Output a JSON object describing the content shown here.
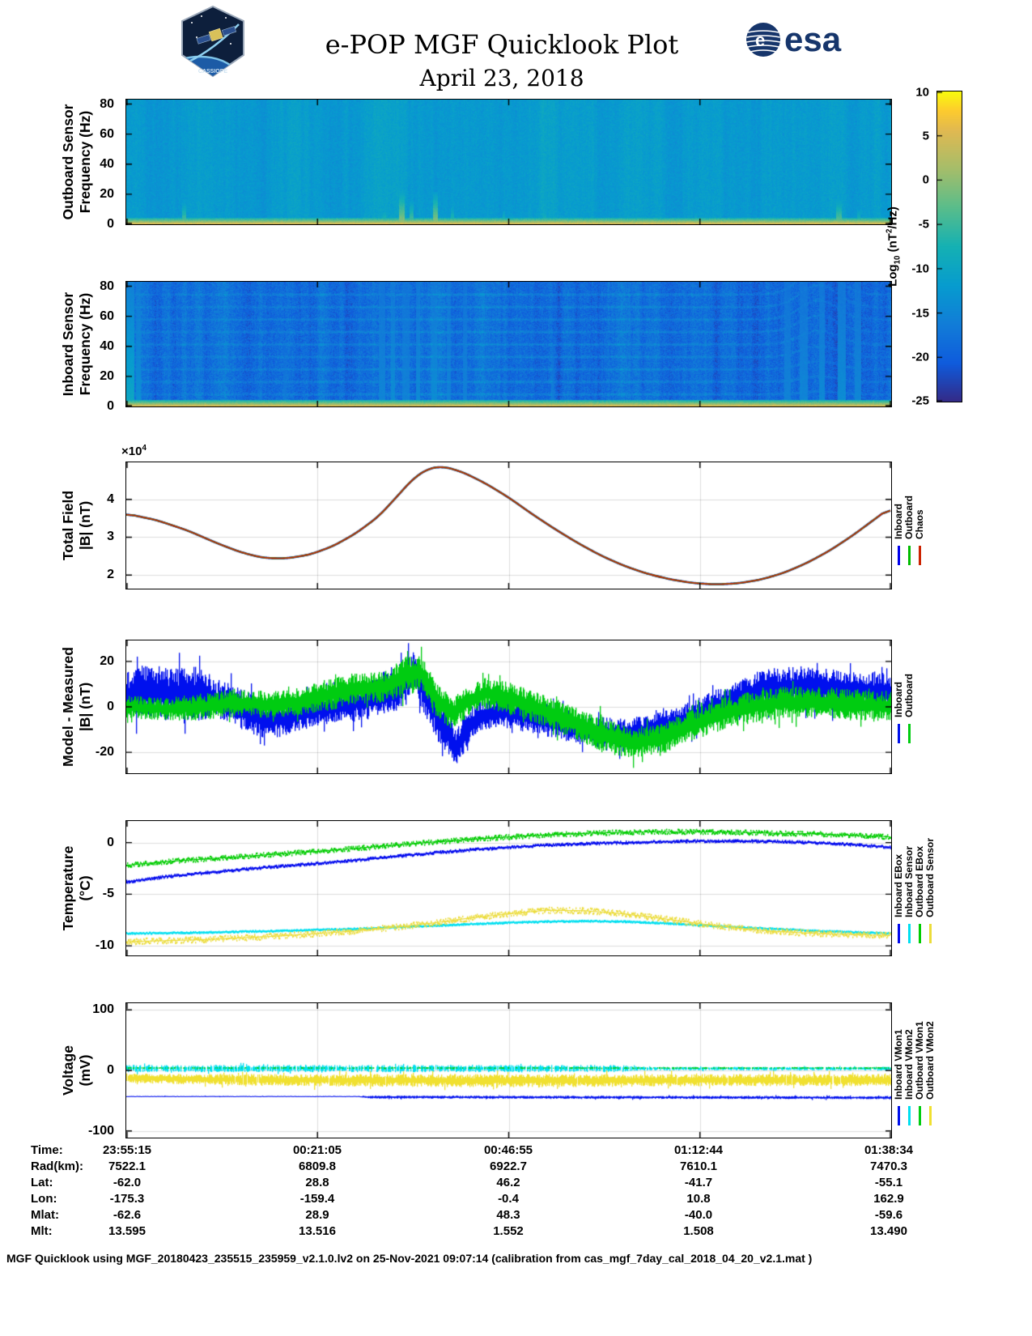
{
  "header": {
    "title": "e-POP MGF Quicklook Plot",
    "subtitle": "April 23, 2018",
    "esa_text": "esa",
    "esa_mark": "e",
    "patch_text": "CASSIOPE"
  },
  "colorbar": {
    "label_prefix": "Log",
    "label_sub": "10",
    "label_mid": " (nT",
    "label_sup": "2",
    "label_suffix": "/Hz)",
    "clim": [
      -25,
      10
    ],
    "ticks": [
      10,
      5,
      0,
      -5,
      -10,
      -15,
      -20,
      -25
    ],
    "colormap": "parula"
  },
  "chart_data": [
    {
      "id": "outboard-spectrogram",
      "type": "heatmap",
      "ylabel_line1": "Outboard Sensor",
      "ylabel_line2": "Frequency (Hz)",
      "ylim": [
        0,
        83
      ],
      "yticks": [
        0,
        20,
        40,
        60,
        80
      ],
      "clim": [
        -25,
        10
      ],
      "colormap": "parula",
      "base_level": -12,
      "pixel_noise": 1.4,
      "column_noise": 0.8,
      "bottom_band": {
        "level": 7,
        "falloff": 3.4,
        "fmax": 4.5
      },
      "harmonics": null,
      "streaks": [
        {
          "x": 0.072,
          "w": 0.006,
          "fmax": 15,
          "boost": 10
        },
        {
          "x": 0.335,
          "w": 0.004,
          "fmax": 10,
          "boost": 8
        },
        {
          "x": 0.356,
          "w": 0.007,
          "fmax": 24,
          "boost": 13
        },
        {
          "x": 0.37,
          "w": 0.005,
          "fmax": 16,
          "boost": 10
        },
        {
          "x": 0.401,
          "w": 0.006,
          "fmax": 22,
          "boost": 13
        },
        {
          "x": 0.424,
          "w": 0.004,
          "fmax": 12,
          "boost": 8
        },
        {
          "x": 0.492,
          "w": 0.003,
          "fmax": 9,
          "boost": 7
        },
        {
          "x": 0.545,
          "w": 0.004,
          "fmax": 10,
          "boost": 7
        },
        {
          "x": 0.742,
          "w": 0.003,
          "fmax": 8,
          "boost": 6
        },
        {
          "x": 0.928,
          "w": 0.007,
          "fmax": 17,
          "boost": 11
        },
        {
          "x": 0.955,
          "w": 0.004,
          "fmax": 10,
          "boost": 7
        }
      ]
    },
    {
      "id": "inboard-spectrogram",
      "type": "heatmap",
      "ylabel_line1": "Inboard Sensor",
      "ylabel_line2": "Frequency (Hz)",
      "ylim": [
        0,
        83
      ],
      "yticks": [
        0,
        20,
        40,
        60,
        80
      ],
      "clim": [
        -25,
        10
      ],
      "colormap": "parula",
      "base_level": -18.5,
      "pixel_noise": 2.4,
      "column_noise": 1.4,
      "bottom_band": {
        "level": 7,
        "falloff": 3.4,
        "fmax": 4.5
      },
      "harmonics": {
        "spacing": 8.3,
        "count": 9,
        "strength": 3.4
      },
      "streaks": [
        {
          "x": 0.0,
          "w": 0.01,
          "fmax": 83,
          "boost": 9
        },
        {
          "x": 0.012,
          "w": 0.006,
          "fmax": 83,
          "boost": 5
        },
        {
          "x": 0.205,
          "w": 0.004,
          "fmax": 40,
          "boost": 2
        },
        {
          "x": 0.33,
          "w": 0.008,
          "fmax": 83,
          "boost": 3.5
        },
        {
          "x": 0.345,
          "w": 0.006,
          "fmax": 83,
          "boost": 4.5
        },
        {
          "x": 0.36,
          "w": 0.01,
          "fmax": 83,
          "boost": 3
        },
        {
          "x": 0.378,
          "w": 0.006,
          "fmax": 83,
          "boost": 4
        },
        {
          "x": 0.398,
          "w": 0.008,
          "fmax": 83,
          "boost": 4.5
        },
        {
          "x": 0.418,
          "w": 0.006,
          "fmax": 83,
          "boost": 3
        },
        {
          "x": 0.44,
          "w": 0.005,
          "fmax": 83,
          "boost": 3
        },
        {
          "x": 0.555,
          "w": 0.004,
          "fmax": 40,
          "boost": 2.5
        },
        {
          "x": 0.86,
          "w": 0.008,
          "fmax": 83,
          "boost": 3
        },
        {
          "x": 0.88,
          "w": 0.01,
          "fmax": 83,
          "boost": 3.5
        },
        {
          "x": 0.905,
          "w": 0.008,
          "fmax": 83,
          "boost": 4
        },
        {
          "x": 0.93,
          "w": 0.01,
          "fmax": 83,
          "boost": 4.5
        },
        {
          "x": 0.952,
          "w": 0.008,
          "fmax": 83,
          "boost": 3.5
        }
      ]
    },
    {
      "id": "total-field",
      "type": "line",
      "ylabel_line1": "Total Field",
      "ylabel_line2": "|B| (nT)",
      "exp_prefix": "×10",
      "exp_power": "4",
      "unit_scale": "1e4 nT",
      "ylim": [
        1.64,
        4.98
      ],
      "yticks": [
        2,
        3,
        4
      ],
      "grid": true,
      "x": [
        0,
        0.04,
        0.08,
        0.12,
        0.15,
        0.18,
        0.21,
        0.24,
        0.27,
        0.3,
        0.33,
        0.355,
        0.375,
        0.395,
        0.415,
        0.44,
        0.47,
        0.5,
        0.53,
        0.56,
        0.59,
        0.62,
        0.65,
        0.68,
        0.71,
        0.74,
        0.77,
        0.8,
        0.83,
        0.86,
        0.89,
        0.92,
        0.95,
        0.98,
        1.0
      ],
      "y": [
        3.62,
        3.45,
        3.18,
        2.83,
        2.6,
        2.45,
        2.44,
        2.54,
        2.76,
        3.1,
        3.55,
        4.1,
        4.55,
        4.82,
        4.87,
        4.72,
        4.42,
        4.05,
        3.62,
        3.22,
        2.85,
        2.52,
        2.25,
        2.04,
        1.89,
        1.79,
        1.75,
        1.78,
        1.88,
        2.06,
        2.32,
        2.65,
        3.05,
        3.5,
        3.8
      ],
      "series": [
        {
          "name": "Inboard",
          "color": "#0000ee"
        },
        {
          "name": "Outboard",
          "color": "#00bb00"
        },
        {
          "name": "Chaos",
          "color": "#cc2200"
        }
      ]
    },
    {
      "id": "model-measured",
      "type": "noisy",
      "ylabel_line1": "Model - Measured",
      "ylabel_line2": "|B| (nT)",
      "ylim": [
        -29.2,
        29.2
      ],
      "yticks": [
        -20,
        0,
        20
      ],
      "grid": true,
      "series": [
        {
          "name": "Inboard",
          "color": "#0010ee",
          "gap": 0,
          "x": [
            0,
            0.03,
            0.06,
            0.09,
            0.12,
            0.15,
            0.18,
            0.21,
            0.24,
            0.27,
            0.3,
            0.33,
            0.355,
            0.375,
            0.39,
            0.41,
            0.43,
            0.445,
            0.46,
            0.49,
            0.52,
            0.56,
            0.6,
            0.64,
            0.68,
            0.72,
            0.76,
            0.8,
            0.84,
            0.88,
            0.92,
            0.96,
            1.0
          ],
          "center": [
            5,
            7,
            5,
            6,
            3,
            -1,
            -5,
            -5,
            -2,
            0,
            2,
            4,
            8,
            16,
            6,
            -6,
            -18,
            -10,
            -4,
            -2,
            -4,
            -7,
            -10,
            -12,
            -11,
            -7,
            -1,
            4,
            8,
            9,
            8,
            7,
            6
          ],
          "amp": [
            10,
            13,
            12,
            12,
            9,
            9,
            9,
            8,
            7,
            7,
            8,
            9,
            11,
            9,
            10,
            11,
            8,
            8,
            7,
            7,
            7,
            7,
            7,
            7,
            7,
            7,
            7,
            8,
            9,
            9,
            9,
            9,
            9
          ]
        },
        {
          "name": "Outboard",
          "color": "#00cc11",
          "gap": 0,
          "x": [
            0,
            0.05,
            0.1,
            0.14,
            0.18,
            0.22,
            0.26,
            0.3,
            0.34,
            0.365,
            0.385,
            0.405,
            0.425,
            0.445,
            0.47,
            0.5,
            0.54,
            0.58,
            0.62,
            0.66,
            0.7,
            0.74,
            0.78,
            0.82,
            0.86,
            0.9,
            0.95,
            1.0
          ],
          "center": [
            0,
            -1,
            0,
            2,
            1,
            2,
            5,
            8,
            9,
            14,
            15,
            3,
            -3,
            2,
            6,
            4,
            -1,
            -6,
            -12,
            -16,
            -14,
            -8,
            -3,
            0,
            2,
            2,
            1,
            0
          ],
          "amp": [
            5,
            5,
            6,
            6,
            6,
            6,
            7,
            7,
            7,
            9,
            8,
            8,
            7,
            7,
            7,
            7,
            7,
            7,
            8,
            7,
            7,
            7,
            7,
            7,
            7,
            7,
            7,
            7
          ]
        }
      ]
    },
    {
      "id": "temperature",
      "type": "fuzzy-line",
      "ylabel_line1": "Temperature",
      "ylabel_line2": "(°C)",
      "ylim": [
        -10.93,
        2.09
      ],
      "yticks": [
        0,
        -5,
        -10
      ],
      "grid": true,
      "series": [
        {
          "name": "Inboard EBox",
          "color": "#0008ee",
          "fuzz": 0.12,
          "x": [
            0,
            0.05,
            0.1,
            0.15,
            0.2,
            0.25,
            0.3,
            0.35,
            0.4,
            0.45,
            0.5,
            0.55,
            0.6,
            0.65,
            0.7,
            0.75,
            0.8,
            0.85,
            0.9,
            0.95,
            1
          ],
          "y": [
            -3.8,
            -3.3,
            -2.95,
            -2.6,
            -2.3,
            -2.0,
            -1.7,
            -1.35,
            -1.0,
            -0.7,
            -0.45,
            -0.25,
            -0.1,
            0.0,
            0.1,
            0.15,
            0.15,
            0.1,
            0.0,
            -0.2,
            -0.45
          ]
        },
        {
          "name": "Inboard Sensor",
          "color": "#00dff0",
          "fuzz": 0.07,
          "x": [
            0,
            0.1,
            0.2,
            0.3,
            0.4,
            0.5,
            0.55,
            0.6,
            0.65,
            0.7,
            0.8,
            0.9,
            1
          ],
          "y": [
            -8.8,
            -8.7,
            -8.55,
            -8.35,
            -8.05,
            -7.75,
            -7.65,
            -7.6,
            -7.65,
            -7.8,
            -8.2,
            -8.55,
            -8.8
          ]
        },
        {
          "name": "Outboard EBox",
          "color": "#00cc00",
          "fuzz": 0.22,
          "x": [
            0,
            0.05,
            0.1,
            0.15,
            0.2,
            0.25,
            0.3,
            0.35,
            0.4,
            0.45,
            0.5,
            0.55,
            0.6,
            0.65,
            0.7,
            0.75,
            0.8,
            0.85,
            0.9,
            0.95,
            1
          ],
          "y": [
            -2.2,
            -1.85,
            -1.6,
            -1.35,
            -1.1,
            -0.85,
            -0.55,
            -0.25,
            0.05,
            0.3,
            0.55,
            0.75,
            0.9,
            1.0,
            1.05,
            1.05,
            1.0,
            0.9,
            0.85,
            0.7,
            0.55
          ]
        },
        {
          "name": "Outboard Sensor",
          "color": "#ecdc3a",
          "fuzz": 0.28,
          "x": [
            0,
            0.1,
            0.2,
            0.3,
            0.35,
            0.4,
            0.45,
            0.5,
            0.55,
            0.6,
            0.65,
            0.7,
            0.75,
            0.8,
            0.85,
            0.9,
            0.95,
            1
          ],
          "y": [
            -9.6,
            -9.4,
            -9.05,
            -8.55,
            -8.2,
            -7.8,
            -7.3,
            -6.9,
            -6.55,
            -6.6,
            -6.9,
            -7.35,
            -7.85,
            -8.3,
            -8.6,
            -8.8,
            -8.9,
            -9.0
          ]
        }
      ]
    },
    {
      "id": "voltage",
      "type": "noisy",
      "ylabel_line1": "Voltage",
      "ylabel_line2": "(mV)",
      "ylim": [
        -111,
        111
      ],
      "yticks": [
        -100,
        0,
        100
      ],
      "grid": true,
      "series": [
        {
          "name": "Inboard VMon1",
          "color": "#0010ee",
          "gap": 0,
          "x": [
            0,
            0.3,
            0.32,
            1
          ],
          "center": [
            -43,
            -43,
            -44,
            -45
          ],
          "amp": [
            0.8,
            0.8,
            2.5,
            2.5
          ]
        },
        {
          "name": "Inboard VMon2",
          "color": "#00dff0",
          "gap": 0.25,
          "x": [
            0,
            0.65,
            0.67,
            1
          ],
          "center": [
            3,
            3,
            3,
            3
          ],
          "amp": [
            6,
            6,
            3,
            3
          ]
        },
        {
          "name": "Outboard VMon1",
          "color": "#00cc11",
          "gap": 0.55,
          "x": [
            0,
            1
          ],
          "center": [
            4,
            4
          ],
          "amp": [
            1.5,
            1.5
          ]
        },
        {
          "name": "Outboard VMon2",
          "color": "#f0e030",
          "gap": 0.02,
          "x": [
            0,
            0.2,
            0.5,
            0.8,
            1
          ],
          "center": [
            -13,
            -16,
            -17,
            -16,
            -16
          ],
          "amp": [
            8,
            10,
            11,
            10,
            10
          ]
        }
      ]
    }
  ],
  "table": {
    "row_labels": [
      "Time:",
      "Rad(km):",
      "Lat:",
      "Lon:",
      "Mlat:",
      "Mlt:"
    ],
    "rows": [
      [
        "23:55:15",
        "00:21:05",
        "00:46:55",
        "01:12:44",
        "01:38:34"
      ],
      [
        "7522.1",
        "6809.8",
        "6922.7",
        "7610.1",
        "7470.3"
      ],
      [
        "-62.0",
        "28.8",
        "46.2",
        "-41.7",
        "-55.1"
      ],
      [
        "-175.3",
        "-159.4",
        "-0.4",
        "10.8",
        "162.9"
      ],
      [
        "-62.6",
        "28.9",
        "48.3",
        "-40.0",
        "-59.6"
      ],
      [
        "13.595",
        "13.516",
        "1.552",
        "1.508",
        "13.490"
      ]
    ]
  },
  "footer": {
    "text": "MGF Quicklook using MGF_20180423_235515_235959_v2.1.0.lv2 on 25-Nov-2021 09:07:14 (calibration from cas_mgf_7day_cal_2018_04_20_v2.1.mat )"
  }
}
